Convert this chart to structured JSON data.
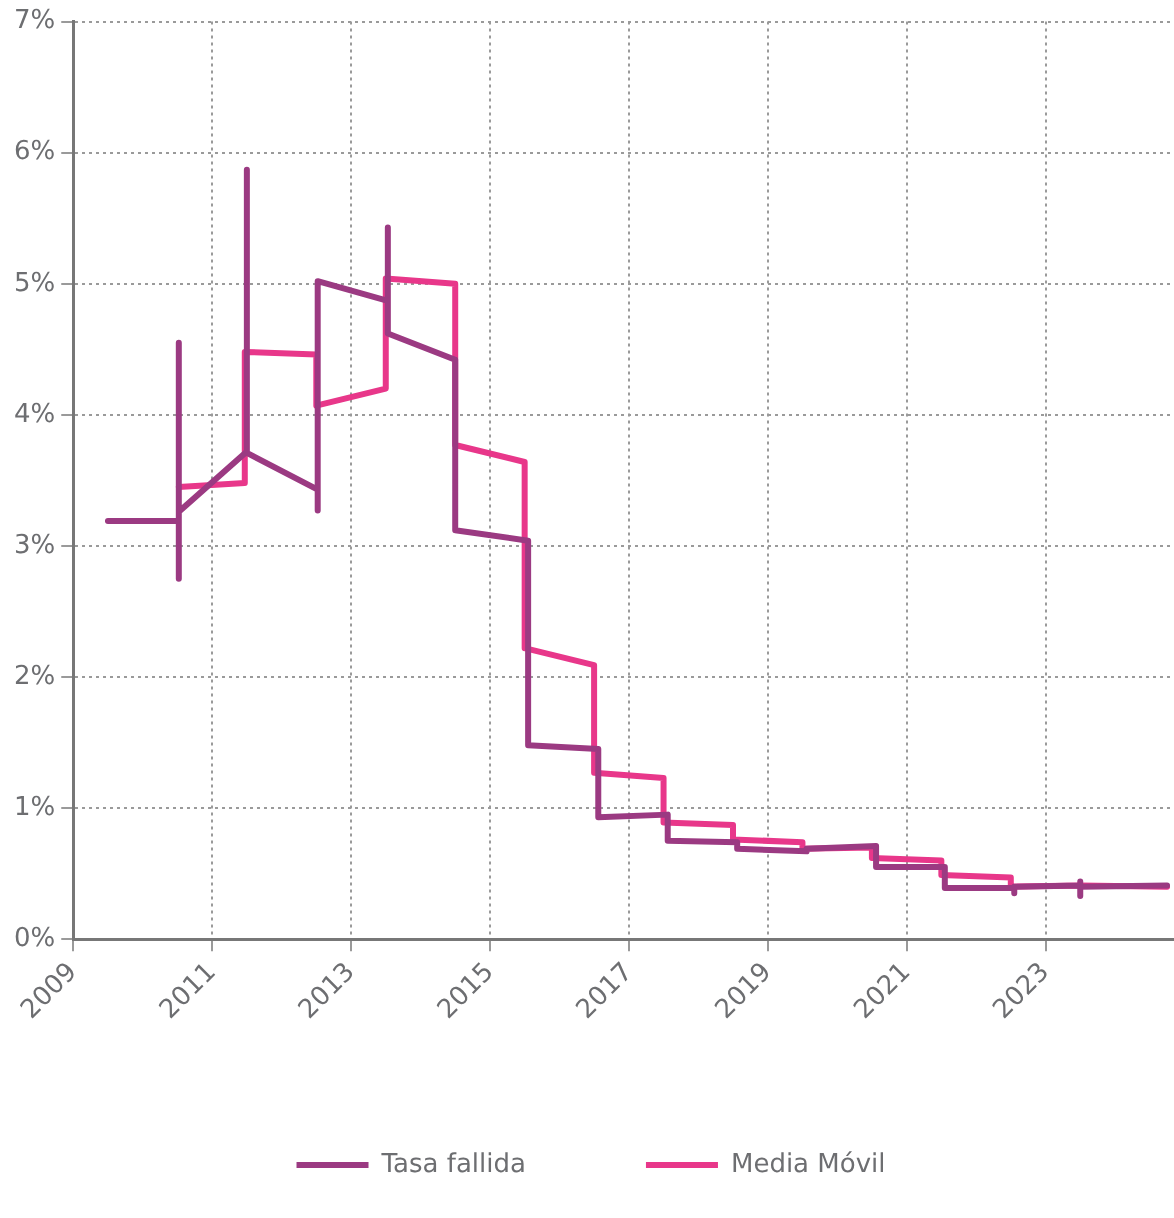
{
  "chart_data": {
    "type": "line",
    "legend": "bottom",
    "grid": true,
    "marker": "none",
    "line_style": "solid",
    "xlim": [
      2009,
      2024.85
    ],
    "xticks": [
      2009,
      2011,
      2013,
      2015,
      2017,
      2019,
      2021,
      2023
    ],
    "ylim": [
      0,
      7
    ],
    "yticks": [
      {
        "value": 0,
        "label": "0%"
      },
      {
        "value": 1,
        "label": "1%"
      },
      {
        "value": 2,
        "label": "2%"
      },
      {
        "value": 3,
        "label": "3%"
      },
      {
        "value": 4,
        "label": "4%"
      },
      {
        "value": 5,
        "label": "5%"
      },
      {
        "value": 6,
        "label": "6%"
      },
      {
        "value": 7,
        "label": "7%"
      }
    ],
    "series": [
      {
        "name": "Tasa fallida",
        "color": "#9b3a82",
        "x": [
          2009.5,
          2010.52,
          2010.52,
          2010.52,
          2010.52,
          2011.5,
          2011.5,
          2011.5,
          2012.52,
          2012.52,
          2012.52,
          2013.53,
          2013.53,
          2013.53,
          2014.5,
          2014.5,
          2015.55,
          2015.55,
          2016.56,
          2016.56,
          2017.56,
          2017.56,
          2018.56,
          2018.56,
          2019.56,
          2019.56,
          2020.56,
          2020.56,
          2021.55,
          2021.55,
          2022.55,
          2022.55,
          2022.55,
          2023.5,
          2023.5,
          2023.5,
          2023.5,
          2024.75
        ],
        "values": [
          3.19,
          3.19,
          2.75,
          4.55,
          3.26,
          3.72,
          5.87,
          3.71,
          3.43,
          3.27,
          5.02,
          4.87,
          5.43,
          4.62,
          4.42,
          3.12,
          3.04,
          1.48,
          1.45,
          0.93,
          0.95,
          0.75,
          0.74,
          0.69,
          0.67,
          0.69,
          0.71,
          0.55,
          0.55,
          0.39,
          0.39,
          0.35,
          0.4,
          0.41,
          0.33,
          0.44,
          0.4,
          0.41
        ]
      },
      {
        "name": "Media Móvil",
        "color": "#e8378a",
        "x": [
          2010.52,
          2011.47,
          2011.47,
          2012.5,
          2012.5,
          2013.5,
          2013.5,
          2014.5,
          2014.5,
          2015.5,
          2015.5,
          2016.5,
          2016.5,
          2017.5,
          2017.5,
          2018.5,
          2018.5,
          2019.5,
          2019.5,
          2020.5,
          2020.5,
          2021.5,
          2021.5,
          2022.5,
          2022.5,
          2023.5,
          2024.75
        ],
        "values": [
          3.45,
          3.48,
          4.48,
          4.46,
          4.07,
          4.2,
          5.04,
          5.0,
          3.77,
          3.64,
          2.22,
          2.09,
          1.27,
          1.23,
          0.89,
          0.87,
          0.76,
          0.74,
          0.69,
          0.7,
          0.62,
          0.6,
          0.49,
          0.47,
          0.4,
          0.41,
          0.4
        ]
      }
    ]
  }
}
